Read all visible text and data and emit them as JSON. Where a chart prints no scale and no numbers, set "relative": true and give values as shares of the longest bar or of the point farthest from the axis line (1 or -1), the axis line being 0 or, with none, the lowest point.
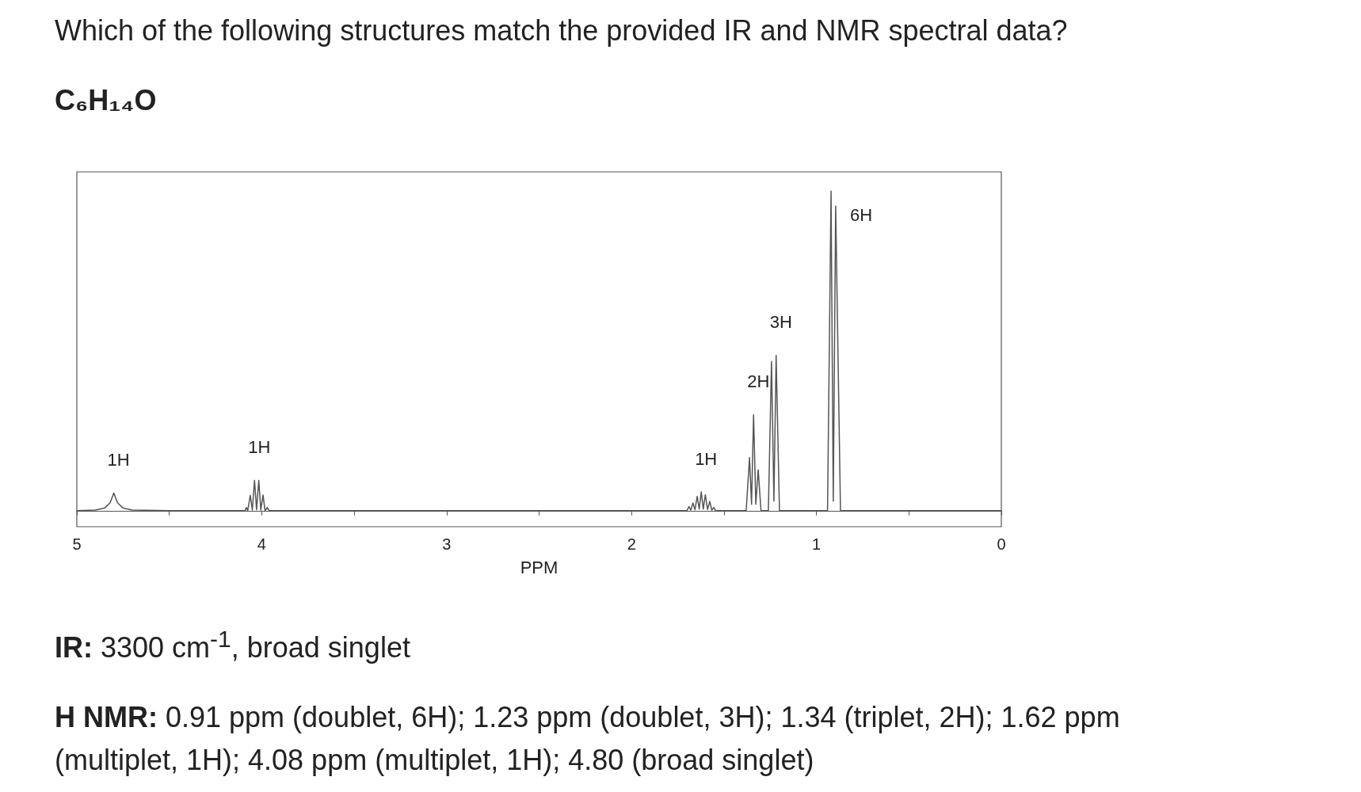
{
  "chart_data": {
    "type": "line",
    "title": "Which of the following structures match the provided IR and NMR spectral data?",
    "subtitle": "C₆H₁₄O",
    "xlabel": "PPM",
    "relative": true,
    "marker": "none",
    "color": "#555555",
    "xlim": [
      5,
      0
    ],
    "xticks": [
      5,
      {
        "value": 4.5,
        "label": null
      },
      4,
      {
        "value": 3.5,
        "label": null
      },
      3,
      {
        "value": 2.5,
        "label": null
      },
      2,
      {
        "value": 1.5,
        "label": null
      },
      1,
      {
        "value": 0.5,
        "label": null
      },
      0
    ],
    "x": [
      5.0,
      4.9,
      4.85,
      4.82,
      4.8,
      4.78,
      4.75,
      4.7,
      4.5,
      4.09,
      4.083,
      4.076,
      4.062,
      4.051,
      4.039,
      4.028,
      4.016,
      4.005,
      3.993,
      3.982,
      3.97,
      3.96,
      1.7,
      1.69,
      1.679,
      1.668,
      1.657,
      1.645,
      1.634,
      1.623,
      1.612,
      1.601,
      1.589,
      1.577,
      1.566,
      1.554,
      1.545,
      1.38,
      1.362,
      1.351,
      1.34,
      1.328,
      1.315,
      1.3,
      1.26,
      1.243,
      1.23,
      1.218,
      1.2,
      0.94,
      0.921,
      0.909,
      0.896,
      0.87,
      0
    ],
    "values": [
      0,
      0.002,
      0.008,
      0.025,
      0.055,
      0.025,
      0.008,
      0.002,
      0,
      0,
      0.01,
      0,
      0.048,
      0.002,
      0.095,
      0.003,
      0.095,
      0.002,
      0.049,
      0,
      0.01,
      0,
      0,
      0.013,
      0.002,
      0.024,
      0.003,
      0.045,
      0.005,
      0.059,
      0.005,
      0.05,
      0.004,
      0.029,
      0.002,
      0.01,
      0,
      0,
      0.166,
      0.02,
      0.3,
      0.02,
      0.128,
      0,
      0,
      0.467,
      0.03,
      0.486,
      0,
      0,
      1,
      0.03,
      0.953,
      0,
      0
    ],
    "annotations": [
      {
        "text": "1H",
        "x": 4.8,
        "y": 0.055
      },
      {
        "text": "1H",
        "x": 4.039,
        "y": 0.095
      },
      {
        "text": "1H",
        "x": 1.623,
        "y": 0.059
      },
      {
        "text": "2H",
        "x": 1.34,
        "y": 0.3
      },
      {
        "text": "3H",
        "x": 1.218,
        "y": 0.486
      },
      {
        "text": "6H",
        "x": 0.921,
        "y": 1
      },
      "IR: 3300 cm$^{-1}$, broad singlet",
      "H NMR: 0.91 ppm (doublet, 6H); 1.23 ppm (doublet, 3H); 1.34 (triplet, 2H); 1.62 ppm (multiplet, 1H); 4.08 ppm (multiplet, 1H); 4.80 (broad singlet)"
    ]
  }
}
